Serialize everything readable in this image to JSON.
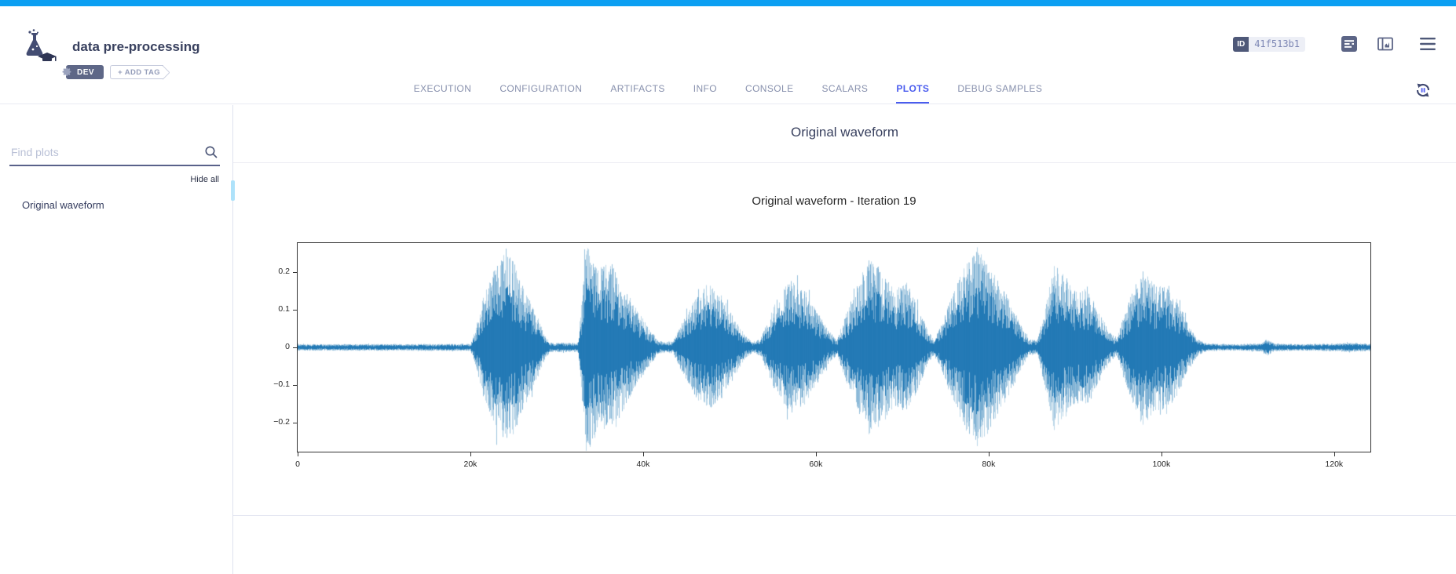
{
  "colors": {
    "status_blue": "#0b9ff2",
    "accent_blue": "#4a5cee",
    "slate": "#5c6586",
    "navy": "#39415f",
    "tab_gray": "#8790ad",
    "waveform_blue": "#1f77b4"
  },
  "status_bar": {
    "status": "COMPLETED"
  },
  "header": {
    "title": "data pre-processing",
    "tags": [
      {
        "label": "DEV"
      }
    ],
    "add_tag_label": "+ ADD TAG",
    "id_label": "ID",
    "id_value": "41f513b1",
    "toolbar_icons": [
      "task-details-icon",
      "info-panel-icon",
      "menu-icon"
    ]
  },
  "tabs": {
    "items": [
      "EXECUTION",
      "CONFIGURATION",
      "ARTIFACTS",
      "INFO",
      "CONSOLE",
      "SCALARS",
      "PLOTS",
      "DEBUG SAMPLES"
    ],
    "active": "PLOTS"
  },
  "sidebar": {
    "search_placeholder": "Find plots",
    "hide_all_label": "Hide all",
    "items": [
      "Original waveform"
    ]
  },
  "main": {
    "section_title": "Original waveform"
  },
  "chart_data": {
    "type": "line",
    "title": "Original waveform - Iteration 19",
    "xlabel": "",
    "ylabel": "",
    "line_color": "#1f77b4",
    "grid": false,
    "legend": false,
    "xlim": [
      0,
      124200
    ],
    "ylim": [
      -0.276,
      0.276
    ],
    "xticks": {
      "values": [
        0,
        20000,
        40000,
        60000,
        80000,
        100000,
        120000
      ],
      "labels": [
        "0",
        "20k",
        "40k",
        "60k",
        "80k",
        "100k",
        "120k"
      ]
    },
    "yticks": {
      "values": [
        0.2,
        0.1,
        0,
        -0.1,
        -0.2
      ],
      "labels": [
        "0.2",
        "0.1",
        "0",
        "−0.1",
        "−0.2"
      ]
    },
    "envelope": [
      [
        0,
        0.008
      ],
      [
        20000,
        0.009
      ],
      [
        20600,
        0.05
      ],
      [
        21500,
        0.13
      ],
      [
        23000,
        0.21
      ],
      [
        24000,
        0.235
      ],
      [
        25000,
        0.22
      ],
      [
        26000,
        0.16
      ],
      [
        27500,
        0.09
      ],
      [
        28600,
        0.03
      ],
      [
        29200,
        0.012
      ],
      [
        32400,
        0.012
      ],
      [
        32800,
        0.1
      ],
      [
        33300,
        0.27
      ],
      [
        34200,
        0.23
      ],
      [
        35200,
        0.2
      ],
      [
        36500,
        0.215
      ],
      [
        37800,
        0.15
      ],
      [
        39200,
        0.095
      ],
      [
        40800,
        0.045
      ],
      [
        41800,
        0.015
      ],
      [
        43400,
        0.015
      ],
      [
        44500,
        0.065
      ],
      [
        46000,
        0.125
      ],
      [
        47500,
        0.16
      ],
      [
        49000,
        0.13
      ],
      [
        50500,
        0.075
      ],
      [
        51800,
        0.03
      ],
      [
        52600,
        0.013
      ],
      [
        53600,
        0.025
      ],
      [
        55000,
        0.1
      ],
      [
        57000,
        0.17
      ],
      [
        58600,
        0.145
      ],
      [
        60000,
        0.095
      ],
      [
        61500,
        0.04
      ],
      [
        62400,
        0.02
      ],
      [
        63200,
        0.07
      ],
      [
        64800,
        0.16
      ],
      [
        66200,
        0.225
      ],
      [
        67600,
        0.195
      ],
      [
        69000,
        0.145
      ],
      [
        70400,
        0.165
      ],
      [
        71600,
        0.115
      ],
      [
        72800,
        0.05
      ],
      [
        73600,
        0.02
      ],
      [
        74600,
        0.06
      ],
      [
        75800,
        0.14
      ],
      [
        77200,
        0.2
      ],
      [
        78600,
        0.25
      ],
      [
        79800,
        0.215
      ],
      [
        81000,
        0.17
      ],
      [
        82400,
        0.12
      ],
      [
        83600,
        0.06
      ],
      [
        84600,
        0.02
      ],
      [
        85600,
        0.018
      ],
      [
        86600,
        0.11
      ],
      [
        87600,
        0.21
      ],
      [
        88800,
        0.175
      ],
      [
        90000,
        0.14
      ],
      [
        91400,
        0.15
      ],
      [
        92600,
        0.095
      ],
      [
        93800,
        0.045
      ],
      [
        94800,
        0.02
      ],
      [
        95600,
        0.08
      ],
      [
        96800,
        0.15
      ],
      [
        97800,
        0.2
      ],
      [
        99200,
        0.155
      ],
      [
        100600,
        0.165
      ],
      [
        102000,
        0.11
      ],
      [
        103200,
        0.055
      ],
      [
        104200,
        0.02
      ],
      [
        105200,
        0.01
      ],
      [
        108000,
        0.008
      ],
      [
        111500,
        0.01
      ],
      [
        112200,
        0.022
      ],
      [
        113000,
        0.01
      ],
      [
        116000,
        0.008
      ],
      [
        120000,
        0.01
      ],
      [
        122000,
        0.012
      ],
      [
        124200,
        0.009
      ]
    ]
  }
}
